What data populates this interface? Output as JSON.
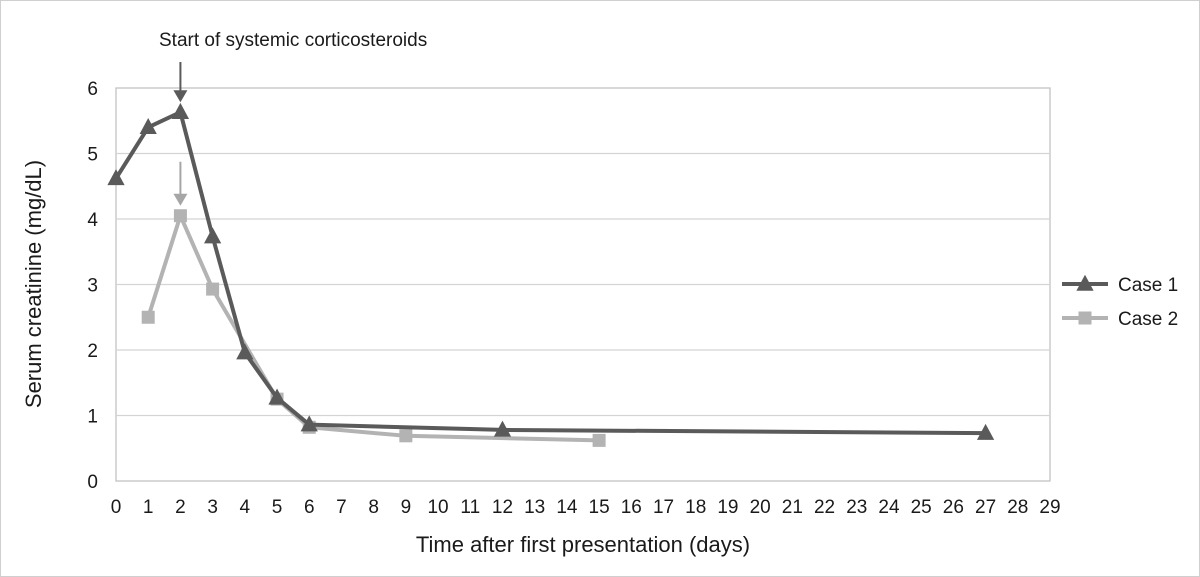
{
  "chart_data": {
    "type": "line",
    "xlabel": "Time after first presentation (days)",
    "ylabel": "Serum creatinine (mg/dL)",
    "xlim": [
      0,
      29
    ],
    "ylim": [
      0,
      6
    ],
    "x_ticks": [
      "0",
      "1",
      "2",
      "3",
      "4",
      "5",
      "6",
      "7",
      "8",
      "9",
      "10",
      "11",
      "12",
      "13",
      "14",
      "15",
      "16",
      "17",
      "18",
      "19",
      "20",
      "21",
      "22",
      "23",
      "24",
      "25",
      "26",
      "27",
      "28",
      "29"
    ],
    "y_ticks": [
      "0",
      "1",
      "2",
      "3",
      "4",
      "5",
      "6"
    ],
    "grid": "horizontal",
    "legend_position": "right",
    "series": [
      {
        "name": "Case 1",
        "color": "#5a5a5a",
        "marker": "triangle",
        "x": [
          0,
          1,
          2,
          3,
          4,
          5,
          6,
          12,
          27
        ],
        "y": [
          4.62,
          5.4,
          5.63,
          3.73,
          1.96,
          1.27,
          0.86,
          0.78,
          0.73
        ]
      },
      {
        "name": "Case 2",
        "color": "#b3b3b3",
        "marker": "square",
        "x": [
          1,
          2,
          3,
          5,
          6,
          9,
          15
        ],
        "y": [
          2.5,
          4.05,
          2.93,
          1.25,
          0.82,
          0.69,
          0.62
        ]
      }
    ],
    "annotations": [
      {
        "text": "Start of systemic corticosteroids",
        "x": 2,
        "y": 5.63,
        "arrow_color": "#5a5a5a"
      },
      {
        "text": "",
        "x": 2,
        "y": 4.05,
        "arrow_color": "#a6a6a6"
      }
    ]
  }
}
